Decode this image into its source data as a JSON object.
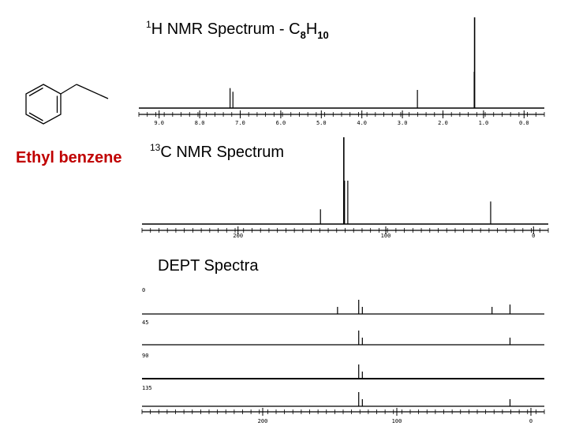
{
  "compound": {
    "name": "Ethyl benzene",
    "name_color": "#c00000"
  },
  "h1": {
    "title_sup": "1",
    "title_main": "H NMR Spectrum - C",
    "title_sub1": "8",
    "title_mid": "H",
    "title_sub2": "10"
  },
  "c13": {
    "title_sup": "13",
    "title_main": "C NMR Spectrum"
  },
  "dept": {
    "title": "DEPT Spectra"
  },
  "chart_data": [
    {
      "type": "line",
      "title": "1H NMR Spectrum - C8H10",
      "xlabel": "",
      "ylabel": "",
      "x_reversed": true,
      "xlim": [
        9.5,
        -0.5
      ],
      "ticks": [
        "9.0",
        "8.0",
        "7.0",
        "6.0",
        "5.0",
        "4.0",
        "3.0",
        "2.0",
        "1.0",
        "0.0"
      ],
      "peaks": [
        {
          "ppm": 7.25,
          "height": 0.22
        },
        {
          "ppm": 7.18,
          "height": 0.18
        },
        {
          "ppm": 2.63,
          "height": 0.2
        },
        {
          "ppm": 1.23,
          "height": 0.4
        },
        {
          "ppm": 1.22,
          "height": 1.0
        }
      ]
    },
    {
      "type": "line",
      "title": "13C NMR Spectrum",
      "xlabel": "",
      "ylabel": "",
      "x_reversed": true,
      "xlim": [
        265,
        -10
      ],
      "ticks": [
        "200",
        "100",
        "0"
      ],
      "peaks": [
        {
          "ppm": 144.2,
          "height": 0.17
        },
        {
          "ppm": 128.4,
          "height": 1.0
        },
        {
          "ppm": 127.9,
          "height": 0.5
        },
        {
          "ppm": 125.7,
          "height": 0.5
        },
        {
          "ppm": 29.0,
          "height": 0.26
        },
        {
          "ppm": 15.6,
          "height": 0.0
        }
      ]
    },
    {
      "type": "line",
      "title": "DEPT Spectra",
      "xlabel": "",
      "ylabel": "",
      "x_reversed": true,
      "xlim": [
        290,
        -10
      ],
      "ticks": [
        "200",
        "100",
        "0"
      ],
      "series": [
        {
          "name": "0",
          "peaks": [
            {
              "ppm": 144.2,
              "height": 0.3
            },
            {
              "ppm": 128.4,
              "height": 0.6
            },
            {
              "ppm": 125.7,
              "height": 0.3
            },
            {
              "ppm": 29.0,
              "height": 0.3
            },
            {
              "ppm": 15.6,
              "height": 0.4
            }
          ]
        },
        {
          "name": "45",
          "peaks": [
            {
              "ppm": 128.4,
              "height": 0.6
            },
            {
              "ppm": 125.7,
              "height": 0.3
            },
            {
              "ppm": 15.6,
              "height": 0.3
            }
          ]
        },
        {
          "name": "90",
          "peaks": [
            {
              "ppm": 128.4,
              "height": 0.6
            },
            {
              "ppm": 125.7,
              "height": 0.3
            }
          ]
        },
        {
          "name": "135",
          "peaks": [
            {
              "ppm": 128.4,
              "height": 0.6
            },
            {
              "ppm": 125.7,
              "height": 0.3
            },
            {
              "ppm": 15.6,
              "height": 0.3
            }
          ]
        }
      ]
    }
  ]
}
